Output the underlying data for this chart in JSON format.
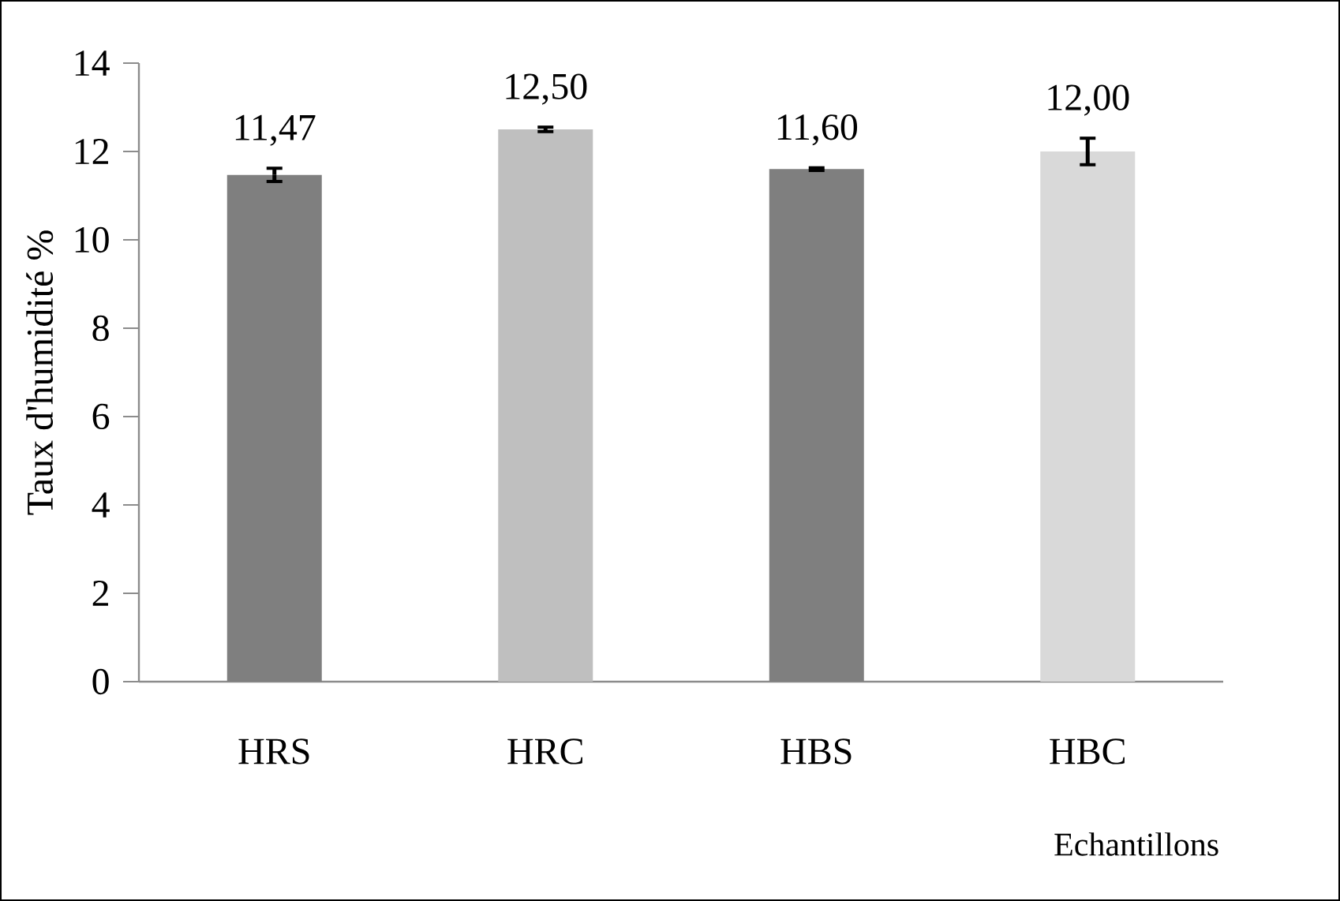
{
  "chart_data": {
    "type": "bar",
    "xlabel": "Echantillons",
    "ylabel": "Taux d'humidité %",
    "categories": [
      "HRS",
      "HRC",
      "HBS",
      "HBC"
    ],
    "values": [
      11.47,
      12.5,
      11.6,
      12.0
    ],
    "errors": [
      0.15,
      0.05,
      0.03,
      0.3
    ],
    "value_labels": [
      "11,47",
      "12,50",
      "11,60",
      "12,00"
    ],
    "colors": [
      "#7f7f7f",
      "#bfbfbf",
      "#7f7f7f",
      "#d9d9d9"
    ],
    "ylim": [
      0,
      14
    ],
    "yticks": [
      0,
      2,
      4,
      6,
      8,
      10,
      12,
      14
    ],
    "grid": false
  }
}
